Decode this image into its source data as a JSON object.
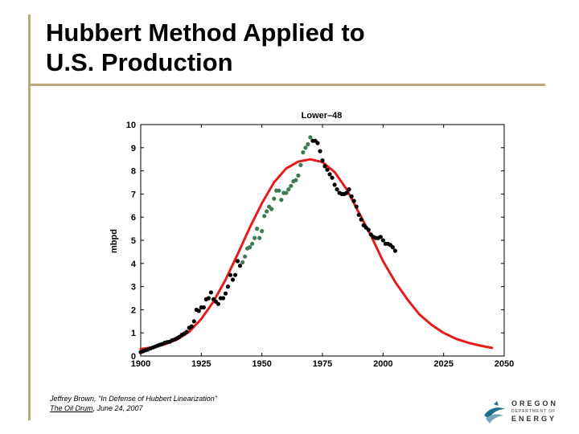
{
  "slide": {
    "title": "Hubbert Method Applied to\nU.S. Production",
    "citation": {
      "line1": "Jeffrey Brown, \"In Defense of Hubbert Linearization\"",
      "publication": "The Oil Drum",
      "date": ", June 24, 2007"
    },
    "logo": {
      "icon": "oregon-energy-logo-icon",
      "line1": "OREGON",
      "line2": "DEPARTMENT OF",
      "line3": "ENERGY"
    }
  },
  "chart_data": {
    "type": "scatter",
    "title": "Lower–48",
    "ylabel": "mbpd",
    "xlabel": "",
    "xlim": [
      1900,
      2050
    ],
    "ylim": [
      0,
      10
    ],
    "xticks": [
      1900,
      1925,
      1950,
      1975,
      2000,
      2025,
      2050
    ],
    "yticks": [
      0,
      1,
      2,
      3,
      4,
      5,
      6,
      7,
      8,
      9,
      10
    ],
    "grid": false,
    "colors": {
      "observed": "#000000",
      "fitted_points": "#3f7a53",
      "curve": "#e41c1c"
    },
    "series": [
      {
        "kind": "points",
        "color": "#000000",
        "points": [
          [
            1900,
            0.17
          ],
          [
            1901,
            0.21
          ],
          [
            1902,
            0.25
          ],
          [
            1903,
            0.28
          ],
          [
            1904,
            0.33
          ],
          [
            1905,
            0.37
          ],
          [
            1906,
            0.41
          ],
          [
            1907,
            0.45
          ],
          [
            1908,
            0.49
          ],
          [
            1909,
            0.52
          ],
          [
            1910,
            0.58
          ],
          [
            1911,
            0.6
          ],
          [
            1912,
            0.62
          ],
          [
            1913,
            0.68
          ],
          [
            1914,
            0.72
          ],
          [
            1915,
            0.77
          ],
          [
            1916,
            0.83
          ],
          [
            1917,
            0.92
          ],
          [
            1918,
            0.97
          ],
          [
            1919,
            1.04
          ],
          [
            1920,
            1.22
          ],
          [
            1921,
            1.28
          ],
          [
            1922,
            1.5
          ],
          [
            1923,
            2.0
          ],
          [
            1924,
            1.95
          ],
          [
            1925,
            2.1
          ],
          [
            1926,
            2.1
          ],
          [
            1927,
            2.45
          ],
          [
            1928,
            2.5
          ],
          [
            1929,
            2.75
          ],
          [
            1930,
            2.45
          ],
          [
            1931,
            2.35
          ],
          [
            1932,
            2.25
          ],
          [
            1933,
            2.5
          ],
          [
            1934,
            2.5
          ],
          [
            1935,
            2.7
          ],
          [
            1936,
            3.0
          ],
          [
            1937,
            3.5
          ],
          [
            1938,
            3.3
          ],
          [
            1939,
            3.5
          ],
          [
            1940,
            4.1
          ],
          [
            1941,
            3.9
          ],
          [
            1971,
            9.3
          ],
          [
            1972,
            9.3
          ],
          [
            1973,
            9.2
          ],
          [
            1974,
            8.85
          ],
          [
            1975,
            8.45
          ],
          [
            1976,
            8.2
          ],
          [
            1977,
            8.05
          ],
          [
            1978,
            7.85
          ],
          [
            1979,
            7.7
          ],
          [
            1980,
            7.4
          ],
          [
            1981,
            7.2
          ],
          [
            1982,
            7.05
          ],
          [
            1983,
            7.0
          ],
          [
            1984,
            7.0
          ],
          [
            1985,
            7.05
          ],
          [
            1986,
            7.2
          ],
          [
            1987,
            6.9
          ],
          [
            1988,
            6.7
          ],
          [
            1989,
            6.45
          ],
          [
            1990,
            6.1
          ],
          [
            1991,
            5.9
          ],
          [
            1992,
            5.65
          ],
          [
            1993,
            5.55
          ],
          [
            1994,
            5.45
          ],
          [
            1995,
            5.25
          ],
          [
            1996,
            5.15
          ],
          [
            1997,
            5.1
          ],
          [
            1998,
            5.1
          ],
          [
            1999,
            5.15
          ],
          [
            2000,
            5.0
          ],
          [
            2001,
            4.85
          ],
          [
            2002,
            4.85
          ],
          [
            2003,
            4.8
          ],
          [
            2004,
            4.7
          ],
          [
            2005,
            4.55
          ]
        ]
      },
      {
        "kind": "points",
        "color": "#3f7a53",
        "points": [
          [
            1942,
            4.05
          ],
          [
            1943,
            4.3
          ],
          [
            1944,
            4.65
          ],
          [
            1945,
            4.7
          ],
          [
            1946,
            4.85
          ],
          [
            1947,
            5.1
          ],
          [
            1948,
            5.5
          ],
          [
            1949,
            5.1
          ],
          [
            1950,
            5.4
          ],
          [
            1951,
            6.05
          ],
          [
            1952,
            6.25
          ],
          [
            1953,
            6.45
          ],
          [
            1954,
            6.35
          ],
          [
            1955,
            6.8
          ],
          [
            1956,
            7.15
          ],
          [
            1957,
            7.15
          ],
          [
            1958,
            6.75
          ],
          [
            1959,
            7.05
          ],
          [
            1960,
            7.05
          ],
          [
            1961,
            7.2
          ],
          [
            1962,
            7.35
          ],
          [
            1963,
            7.55
          ],
          [
            1964,
            7.6
          ],
          [
            1965,
            7.8
          ],
          [
            1966,
            8.25
          ],
          [
            1967,
            8.8
          ],
          [
            1968,
            9.0
          ],
          [
            1969,
            9.15
          ],
          [
            1970,
            9.45
          ]
        ]
      },
      {
        "kind": "curve",
        "color": "#e41c1c",
        "points": [
          [
            1900,
            0.3
          ],
          [
            1905,
            0.38
          ],
          [
            1910,
            0.51
          ],
          [
            1915,
            0.72
          ],
          [
            1920,
            1.05
          ],
          [
            1925,
            1.6
          ],
          [
            1930,
            2.35
          ],
          [
            1935,
            3.3
          ],
          [
            1940,
            4.4
          ],
          [
            1945,
            5.55
          ],
          [
            1950,
            6.6
          ],
          [
            1955,
            7.5
          ],
          [
            1960,
            8.1
          ],
          [
            1965,
            8.4
          ],
          [
            1970,
            8.5
          ],
          [
            1975,
            8.38
          ],
          [
            1980,
            7.95
          ],
          [
            1985,
            7.2
          ],
          [
            1990,
            6.2
          ],
          [
            1995,
            5.2
          ],
          [
            2000,
            4.1
          ],
          [
            2005,
            3.2
          ],
          [
            2010,
            2.45
          ],
          [
            2015,
            1.8
          ],
          [
            2020,
            1.35
          ],
          [
            2025,
            1.0
          ],
          [
            2030,
            0.75
          ],
          [
            2035,
            0.58
          ],
          [
            2040,
            0.45
          ],
          [
            2045,
            0.35
          ]
        ]
      }
    ]
  }
}
